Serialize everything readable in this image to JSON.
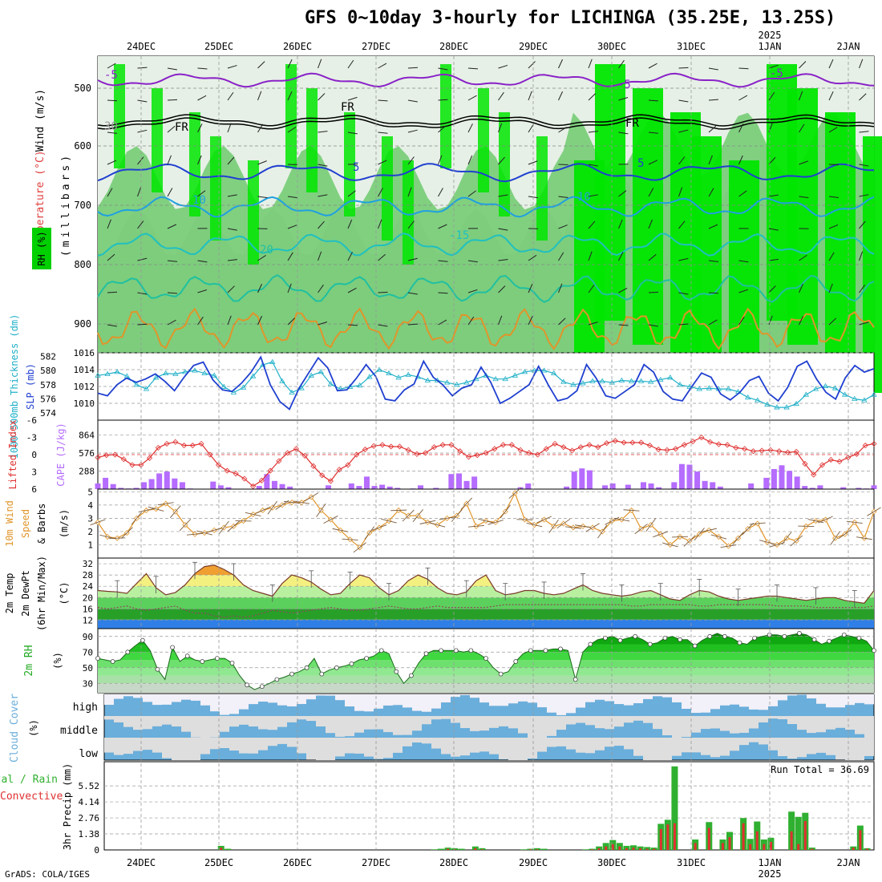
{
  "title": "GFS 0~10day 3-hourly for LICHINGA (35.25E, 13.25S)",
  "credit": "GrADS: COLA/IGES",
  "colors": {
    "rh_dark": "#00e600",
    "rh_mid": "#74cc74",
    "rh_grey": "#c8d0c8",
    "rh_light": "#e6f0e6",
    "cape": "#b56cff",
    "li": "#e03030",
    "slp": "#1f3fd0",
    "thk": "#20b0c8",
    "wind": "#e0952a",
    "cloud": "#6aaedb",
    "precip_total": "#30b030",
    "precip_conv": "#e03030",
    "rh2m": "#22cc22"
  },
  "axis": {
    "date_labels": [
      "24DEC",
      "25DEC",
      "26DEC",
      "27DEC",
      "28DEC",
      "29DEC",
      "30DEC",
      "31DEC",
      "1JAN",
      "2JAN"
    ],
    "year_label": "2025"
  },
  "panels": {
    "upper": {
      "ylabel_wind": "Wind (m/s)",
      "ylabel_temp": "Temperature (°C)",
      "ylabel_rh": "RH (%)",
      "ylabel_p": "(millibars)",
      "yticks": [
        "500",
        "600",
        "700",
        "800",
        "900"
      ],
      "contour_labels": [
        "-5",
        "-5",
        "-5",
        "FR",
        "FR",
        "FR",
        "5",
        "5",
        "10",
        "10",
        "-15",
        "20",
        "30"
      ]
    },
    "slp": {
      "ylabel_thk": "1000-500mb Thickness (dm)",
      "ylabel_slp": "SLP (mb)",
      "thk_ticks": [
        "582",
        "580",
        "578",
        "576",
        "574"
      ],
      "slp_ticks": [
        "1016",
        "1014",
        "1012",
        "1010"
      ]
    },
    "cape": {
      "ylabel_li": "Lifted Index",
      "ylabel_cape": "CAPE (J/kg)",
      "li_ticks": [
        "-6",
        "-3",
        "0",
        "3",
        "6"
      ],
      "cape_ticks": [
        "864",
        "576",
        "288"
      ]
    },
    "wind10": {
      "ylabel1": "10m Wind",
      "ylabel2": "Speed",
      "ylabel3": "& Barbs",
      "ylabel4": "(m/s)",
      "ticks": [
        "5",
        "4",
        "3",
        "2",
        "1"
      ]
    },
    "temp": {
      "ylabel1": "2m Temp",
      "ylabel2": "2m DewPt",
      "ylabel3": "(6hr Min/Max)",
      "ylabel4": "(°C)",
      "ticks": [
        "32",
        "28",
        "24",
        "20",
        "16",
        "12"
      ]
    },
    "rh2m": {
      "ylabel": "2m RH",
      "unit": "(%)",
      "ticks": [
        "90",
        "70",
        "50",
        "30"
      ]
    },
    "cloud": {
      "ylabel": "Cloud Cover",
      "unit": "(%)",
      "levels": [
        "high",
        "middle",
        "low"
      ]
    },
    "precip": {
      "ylabel_total": "Total / Rain",
      "ylabel_conv": "Convective",
      "ylabel": "3hr Precip (mm)",
      "ticks": [
        "5.52",
        "4.14",
        "2.76",
        "1.38",
        "0"
      ],
      "run_total": "Run Total = 36.69"
    }
  },
  "chart_data": {
    "type": "line",
    "x_start": "23DEC 18Z",
    "x_step_hours": 3,
    "x_count": 81,
    "slp_mb": [
      1011.2,
      1010.9,
      1012.2,
      1013.0,
      1012.5,
      1012.9,
      1013.5,
      1012.6,
      1011.5,
      1013.1,
      1014.5,
      1014.9,
      1012.8,
      1011.6,
      1011.4,
      1012.4,
      1013.7,
      1015.5,
      1012.2,
      1010.2,
      1009.3,
      1011.8,
      1013.6,
      1015.4,
      1014.2,
      1011.5,
      1011.6,
      1013.0,
      1014.6,
      1013.2,
      1010.5,
      1010.3,
      1011.6,
      1012.3,
      1015.0,
      1013.1,
      1012.2,
      1010.9,
      1011.8,
      1012.2,
      1014.3,
      1012.5,
      1010.0,
      1010.6,
      1011.4,
      1012.2,
      1014.4,
      1012.2,
      1010.3,
      1010.6,
      1011.5,
      1014.6,
      1013.0,
      1010.9,
      1010.6,
      1011.4,
      1012.2,
      1014.6,
      1013.7,
      1011.4,
      1010.5,
      1010.3,
      1012.0,
      1013.6,
      1013.1,
      1011.1,
      1010.4,
      1011.3,
      1012.7,
      1013.2,
      1011.2,
      1010.3,
      1011.9,
      1014.4,
      1015.0,
      1012.9,
      1011.3,
      1010.5,
      1013.0,
      1014.5,
      1013.7,
      1014.1
    ],
    "thickness_dm": [
      579.3,
      579.5,
      579.8,
      579.2,
      578.0,
      577.4,
      579.0,
      579.6,
      579.5,
      579.8,
      580.0,
      579.6,
      579.3,
      577.7,
      576.9,
      577.6,
      579.2,
      580.8,
      581.2,
      578.5,
      576.9,
      577.5,
      579.3,
      579.8,
      578.1,
      577.4,
      577.7,
      577.9,
      579.1,
      580.1,
      579.6,
      579.0,
      579.4,
      579.1,
      578.6,
      578.6,
      578.3,
      578.0,
      578.3,
      578.8,
      579.3,
      578.8,
      578.8,
      579.3,
      579.8,
      580.0,
      580.0,
      579.6,
      578.4,
      578.0,
      578.2,
      578.5,
      578.5,
      578.3,
      578.6,
      578.5,
      578.5,
      578.4,
      578.7,
      579.0,
      578.0,
      577.7,
      577.4,
      577.5,
      577.4,
      577.4,
      577.0,
      576.2,
      575.8,
      575.2,
      574.8,
      574.8,
      575.3,
      576.6,
      577.4,
      577.8,
      577.5,
      576.6,
      576.0,
      575.8,
      576.6
    ],
    "lifted_index": [
      0.5,
      0.1,
      0.0,
      0.8,
      1.8,
      1.8,
      0.6,
      -1.2,
      -1.9,
      -2.2,
      -1.6,
      -1.6,
      -1.9,
      0.0,
      1.8,
      2.8,
      3.3,
      4.2,
      5.5,
      4.5,
      2.8,
      1.1,
      -0.3,
      -1.0,
      0.2,
      2.0,
      3.6,
      4.6,
      2.6,
      1.8,
      0.0,
      -0.9,
      -1.5,
      -1.7,
      -1.4,
      -1.4,
      -0.8,
      -0.1,
      -0.3,
      -1.3,
      -1.7,
      -1.7,
      -0.6,
      0.4,
      0.1,
      -0.3,
      -1.0,
      -1.7,
      -1.7,
      -0.8,
      -0.3,
      0.0,
      -1.0,
      -1.9,
      -1.3,
      -0.7,
      -1.3,
      -1.7,
      -1.3,
      -2.0,
      -2.4,
      -2.1,
      -2.1,
      -2.1,
      -1.6,
      -0.9,
      -0.8,
      -1.0,
      -1.7,
      -2.3,
      -3.0,
      -2.2,
      -1.8,
      -1.7,
      -1.2,
      -1.0,
      -0.6,
      -0.7,
      -0.8,
      -0.6,
      -0.4,
      -0.5,
      1.6,
      3.5,
      1.8,
      0.9,
      1.2,
      0.5,
      -0.1,
      -1.6,
      -1.9
    ],
    "cape_jkg": [
      90,
      180,
      80,
      20,
      10,
      20,
      110,
      160,
      250,
      280,
      170,
      110,
      10,
      0,
      0,
      120,
      60,
      30,
      0,
      0,
      0,
      50,
      240,
      130,
      80,
      40,
      0,
      0,
      0,
      0,
      60,
      0,
      0,
      90,
      50,
      200,
      50,
      70,
      40,
      20,
      0,
      10,
      60,
      0,
      20,
      0,
      240,
      250,
      130,
      200,
      0,
      0,
      0,
      0,
      0,
      30,
      90,
      0,
      0,
      0,
      0,
      40,
      280,
      330,
      300,
      0,
      60,
      90,
      0,
      70,
      0,
      110,
      90,
      30,
      0,
      110,
      400,
      390,
      280,
      130,
      110,
      40,
      0,
      0,
      0,
      90,
      0,
      180,
      320,
      380,
      290,
      200,
      50,
      20,
      60,
      0,
      0,
      30,
      0,
      20,
      10,
      60
    ],
    "wind10m_ms": [
      2.7,
      1.6,
      1.5,
      1.9,
      3.0,
      3.6,
      3.7,
      4.1,
      3.5,
      2.5,
      1.8,
      1.9,
      2.1,
      2.3,
      2.4,
      2.8,
      3.3,
      3.6,
      3.8,
      4.0,
      4.2,
      4.2,
      4.6,
      3.6,
      2.9,
      2.1,
      1.4,
      0.8,
      1.9,
      2.3,
      2.8,
      3.6,
      3.2,
      3.2,
      2.7,
      2.5,
      3.0,
      3.2,
      4.1,
      2.4,
      2.8,
      2.7,
      3.5,
      4.9,
      2.9,
      2.5,
      2.9,
      2.4,
      2.6,
      2.3,
      2.4,
      2.3,
      2.0,
      2.8,
      2.9,
      3.6,
      2.2,
      2.5,
      1.8,
      1.0,
      1.6,
      1.3,
      1.8,
      2.1,
      1.6,
      0.9,
      1.5,
      2.2,
      2.6,
      1.2,
      1.0,
      1.5,
      1.3,
      2.4,
      2.8,
      2.9,
      1.5,
      1.8,
      2.7,
      1.5,
      3.5
    ],
    "temp2m_c": [
      22.5,
      22.2,
      22.0,
      21.5,
      25.0,
      28.5,
      23.5,
      21.0,
      21.8,
      24.5,
      28.5,
      31.0,
      31.5,
      30.0,
      28.0,
      24.5,
      22.5,
      21.5,
      20.5,
      25.0,
      28.0,
      27.0,
      25.5,
      23.0,
      21.0,
      21.5,
      25.0,
      28.0,
      27.0,
      23.5,
      21.0,
      22.5,
      26.0,
      28.0,
      26.5,
      23.5,
      21.5,
      21.0,
      22.0,
      26.0,
      28.0,
      22.5,
      21.0,
      21.5,
      22.5,
      22.5,
      21.5,
      21.0,
      21.5,
      23.0,
      24.5,
      22.5,
      21.5,
      21.0,
      20.5,
      21.0,
      22.0,
      22.5,
      21.0,
      19.5,
      19.0,
      21.0,
      22.5,
      22.0,
      20.5,
      19.5,
      19.0,
      19.5,
      20.0,
      20.5,
      20.5,
      20.0,
      19.5,
      19.0,
      19.5,
      20.0,
      20.0,
      19.0,
      18.5,
      18.0,
      22.5
    ],
    "dewpt2m_c": [
      16.5,
      16.0,
      16.5,
      17.0,
      16.0,
      15.5,
      16.0,
      16.5,
      17.0,
      15.5,
      14.5,
      14.5,
      13.5,
      13.0,
      13.5,
      13.0,
      13.5,
      14.5,
      15.5,
      15.0,
      14.5,
      15.0,
      15.5,
      16.0,
      16.5,
      16.0,
      15.5,
      15.5,
      16.0,
      16.5,
      17.0,
      16.5,
      16.0,
      16.0,
      16.5,
      17.0,
      16.5,
      16.5,
      16.5,
      16.5,
      16.5,
      17.0,
      17.5,
      17.5,
      17.5,
      17.5,
      17.5,
      17.5,
      17.5,
      17.5,
      17.5,
      17.5,
      17.5,
      17.5,
      17.5,
      17.0,
      17.0,
      17.5,
      17.5,
      17.5,
      17.5,
      17.5,
      17.0,
      17.0,
      17.5,
      17.5,
      17.5,
      17.5,
      17.5,
      17.5,
      17.0,
      17.0,
      17.0,
      17.0,
      16.5,
      16.5,
      16.5,
      16.5,
      16.5,
      16.5,
      17.0
    ],
    "rh2m_pct": [
      62,
      60,
      58,
      60,
      70,
      78,
      85,
      72,
      48,
      35,
      76,
      58,
      65,
      60,
      58,
      60,
      62,
      62,
      56,
      40,
      28,
      22,
      26,
      30,
      35,
      38,
      42,
      45,
      50,
      62,
      42,
      47,
      50,
      52,
      55,
      60,
      62,
      65,
      72,
      68,
      45,
      30,
      40,
      56,
      68,
      72,
      72,
      72,
      72,
      70,
      72,
      68,
      62,
      50,
      42,
      45,
      58,
      68,
      72,
      72,
      72,
      74,
      74,
      72,
      35,
      70,
      80,
      86,
      88,
      90,
      85,
      88,
      90,
      86,
      80,
      82,
      88,
      90,
      86,
      86,
      78,
      85,
      90,
      94,
      90,
      88,
      82,
      80,
      88,
      90,
      92,
      92,
      90,
      92,
      94,
      92,
      86,
      80,
      84,
      88,
      92,
      90,
      88,
      84,
      72
    ],
    "precip_total_mm": [
      0,
      0,
      0,
      0,
      0,
      0,
      0,
      0,
      0,
      0,
      0,
      0,
      0,
      0,
      0,
      0,
      0,
      0.35,
      0.1,
      0,
      0,
      0,
      0,
      0,
      0,
      0,
      0,
      0,
      0,
      0,
      0,
      0,
      0,
      0,
      0,
      0,
      0,
      0,
      0,
      0,
      0,
      0,
      0,
      0,
      0,
      0,
      0,
      0,
      0.05,
      0.1,
      0.2,
      0.15,
      0.1,
      0,
      0.3,
      0.15,
      0,
      0,
      0,
      0,
      0,
      0.05,
      0.1,
      0.15,
      0.1,
      0,
      0,
      0,
      0,
      0,
      0.05,
      0.1,
      0.3,
      0.6,
      0.85,
      0.6,
      0.35,
      0.4,
      0.3,
      0.25,
      0.2,
      2.25,
      2.6,
      7.2,
      0,
      0,
      0.9,
      0,
      2.4,
      0,
      0.9,
      1.55,
      0,
      2.75,
      0.95,
      2.45,
      0.9,
      1.05,
      0,
      0,
      3.3,
      2.85,
      3.2,
      0.2,
      0,
      0,
      0,
      0,
      0,
      0.3,
      2.1,
      0.15,
      0
    ],
    "precip_conv_mm": [
      0,
      0,
      0,
      0,
      0,
      0,
      0,
      0,
      0,
      0,
      0,
      0,
      0,
      0,
      0,
      0,
      0,
      0.2,
      0,
      0,
      0,
      0,
      0,
      0,
      0,
      0,
      0,
      0,
      0,
      0,
      0,
      0,
      0,
      0,
      0,
      0,
      0,
      0,
      0,
      0,
      0,
      0,
      0,
      0,
      0,
      0,
      0,
      0,
      0,
      0,
      0.1,
      0.05,
      0,
      0,
      0.15,
      0.05,
      0,
      0,
      0,
      0,
      0,
      0,
      0.05,
      0.05,
      0,
      0,
      0,
      0,
      0,
      0,
      0,
      0.05,
      0.15,
      0.3,
      0.5,
      0.3,
      0.15,
      0.2,
      0.15,
      0.1,
      0.1,
      1.8,
      2.2,
      2.3,
      0,
      0,
      0.6,
      0,
      1.9,
      0,
      0.6,
      1.1,
      0,
      2.3,
      0.5,
      1.6,
      0.5,
      0.7,
      0,
      0,
      1.6,
      0.5,
      2.5,
      0.1,
      0,
      0,
      0,
      0,
      0,
      0.2,
      1.7,
      0.1,
      0
    ]
  }
}
